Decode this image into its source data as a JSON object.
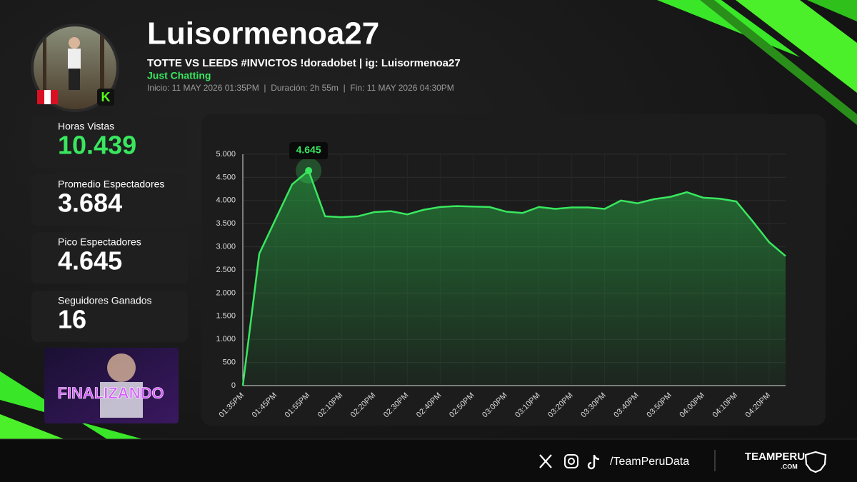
{
  "profile": {
    "name": "Luisormenoa27",
    "stream_title": "TOTTE VS LEEDS #INVICTOS !doradobet | ig: Luisormenoa27",
    "category": "Just Chatting",
    "info": "Inicio: 11 MAY 2026 01:35PM  |  Duración: 2h 55m  |  Fin: 11 MAY 2026 04:30PM"
  },
  "stats": [
    {
      "label": "Horas Vistas",
      "value": "10.439"
    },
    {
      "label": "Promedio Espectadores",
      "value": "3.684"
    },
    {
      "label": "Pico Espectadores",
      "value": "4.645"
    },
    {
      "label": "Seguidores Ganados",
      "value": "16"
    }
  ],
  "thumbnail": {
    "text": "FINALIZANDO"
  },
  "footer": {
    "handle": "/TeamPeruData",
    "brand": "TEAMPERU",
    "brand_suffix": ".COM"
  },
  "chart_data": {
    "type": "area",
    "color": "#39e75f",
    "grid": true,
    "categories": [
      "01:35PM",
      null,
      "01:45PM",
      null,
      "01:55PM",
      null,
      "02:10PM",
      null,
      "02:20PM",
      null,
      "02:30PM",
      null,
      "02:40PM",
      null,
      "02:50PM",
      null,
      "03:00PM",
      null,
      "03:10PM",
      null,
      "03:20PM",
      null,
      "03:30PM",
      null,
      "03:40PM",
      null,
      "03:50PM",
      null,
      "04:00PM",
      null,
      "04:10PM",
      null,
      "04:20PM",
      null
    ],
    "values": [
      0,
      2850,
      3600,
      4350,
      4645,
      3660,
      3640,
      3660,
      3750,
      3770,
      3700,
      3800,
      3860,
      3880,
      3870,
      3860,
      3760,
      3730,
      3860,
      3820,
      3850,
      3850,
      3820,
      4000,
      3940,
      4030,
      4080,
      4180,
      4060,
      4040,
      3980,
      3550,
      3100,
      2800
    ],
    "value_labels": [
      null,
      null,
      null,
      null,
      "4.645",
      null,
      null,
      null,
      null,
      null,
      null,
      null,
      null,
      null,
      null,
      null,
      null,
      null,
      null,
      null,
      null,
      null,
      null,
      null,
      null,
      null,
      null,
      null,
      null,
      null,
      null,
      null,
      null,
      null
    ],
    "ylim": [
      0,
      5000
    ],
    "yticks": [
      0,
      500,
      {
        "value": 1000,
        "label": "1.000"
      },
      {
        "value": 1500,
        "label": "1.500"
      },
      {
        "value": 2000,
        "label": "2.000"
      },
      {
        "value": 2500,
        "label": "2.500"
      },
      {
        "value": 3000,
        "label": "3.000"
      },
      {
        "value": 3500,
        "label": "3.500"
      },
      {
        "value": 4000,
        "label": "4.000"
      },
      {
        "value": 4500,
        "label": "4.500"
      },
      {
        "value": 5000,
        "label": "5.000"
      }
    ]
  }
}
